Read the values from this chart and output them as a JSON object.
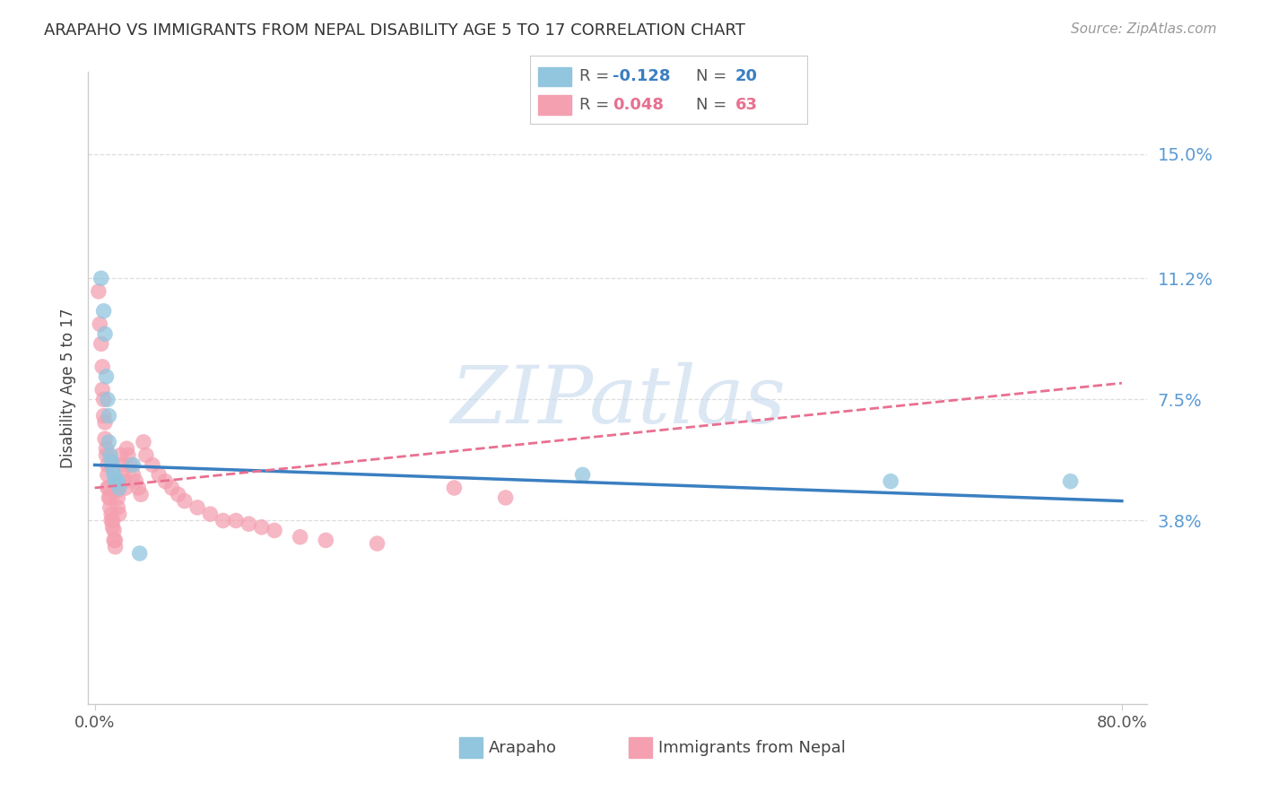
{
  "title": "ARAPAHO VS IMMIGRANTS FROM NEPAL DISABILITY AGE 5 TO 17 CORRELATION CHART",
  "source": "Source: ZipAtlas.com",
  "ylabel": "Disability Age 5 to 17",
  "ytick_labels": [
    "3.8%",
    "7.5%",
    "11.2%",
    "15.0%"
  ],
  "ytick_values": [
    0.038,
    0.075,
    0.112,
    0.15
  ],
  "xlim": [
    -0.005,
    0.82
  ],
  "ylim": [
    -0.018,
    0.175
  ],
  "arapaho_scatter_x": [
    0.005,
    0.007,
    0.008,
    0.009,
    0.01,
    0.011,
    0.011,
    0.012,
    0.013,
    0.014,
    0.015,
    0.016,
    0.017,
    0.018,
    0.019,
    0.03,
    0.035,
    0.38,
    0.62,
    0.76
  ],
  "arapaho_scatter_y": [
    0.112,
    0.102,
    0.095,
    0.082,
    0.075,
    0.07,
    0.062,
    0.058,
    0.056,
    0.054,
    0.052,
    0.05,
    0.05,
    0.05,
    0.048,
    0.055,
    0.028,
    0.052,
    0.05,
    0.05
  ],
  "nepal_scatter_x": [
    0.003,
    0.004,
    0.005,
    0.006,
    0.006,
    0.007,
    0.007,
    0.008,
    0.008,
    0.009,
    0.009,
    0.01,
    0.01,
    0.01,
    0.011,
    0.011,
    0.012,
    0.012,
    0.013,
    0.013,
    0.014,
    0.014,
    0.015,
    0.015,
    0.016,
    0.016,
    0.017,
    0.017,
    0.018,
    0.018,
    0.019,
    0.02,
    0.021,
    0.022,
    0.023,
    0.024,
    0.025,
    0.026,
    0.028,
    0.03,
    0.032,
    0.034,
    0.036,
    0.038,
    0.04,
    0.045,
    0.05,
    0.055,
    0.06,
    0.065,
    0.07,
    0.08,
    0.09,
    0.1,
    0.11,
    0.12,
    0.13,
    0.14,
    0.16,
    0.18,
    0.22,
    0.28,
    0.32
  ],
  "nepal_scatter_y": [
    0.108,
    0.098,
    0.092,
    0.085,
    0.078,
    0.075,
    0.07,
    0.068,
    0.063,
    0.06,
    0.058,
    0.055,
    0.052,
    0.048,
    0.048,
    0.045,
    0.045,
    0.042,
    0.04,
    0.038,
    0.038,
    0.036,
    0.035,
    0.032,
    0.032,
    0.03,
    0.05,
    0.047,
    0.045,
    0.042,
    0.04,
    0.058,
    0.055,
    0.052,
    0.05,
    0.048,
    0.06,
    0.058,
    0.055,
    0.052,
    0.05,
    0.048,
    0.046,
    0.062,
    0.058,
    0.055,
    0.052,
    0.05,
    0.048,
    0.046,
    0.044,
    0.042,
    0.04,
    0.038,
    0.038,
    0.037,
    0.036,
    0.035,
    0.033,
    0.032,
    0.031,
    0.048,
    0.045
  ],
  "arapaho_color": "#92c5de",
  "nepal_color": "#f4a0b0",
  "arapaho_line_color": "#3a7fc1",
  "nepal_line_color": "#e87090",
  "arapaho_line_y0": 0.055,
  "arapaho_line_y1": 0.044,
  "nepal_line_y0": 0.048,
  "nepal_line_y1": 0.08,
  "watermark": "ZIPatlas",
  "background_color": "#ffffff",
  "grid_color": "#dddddd"
}
